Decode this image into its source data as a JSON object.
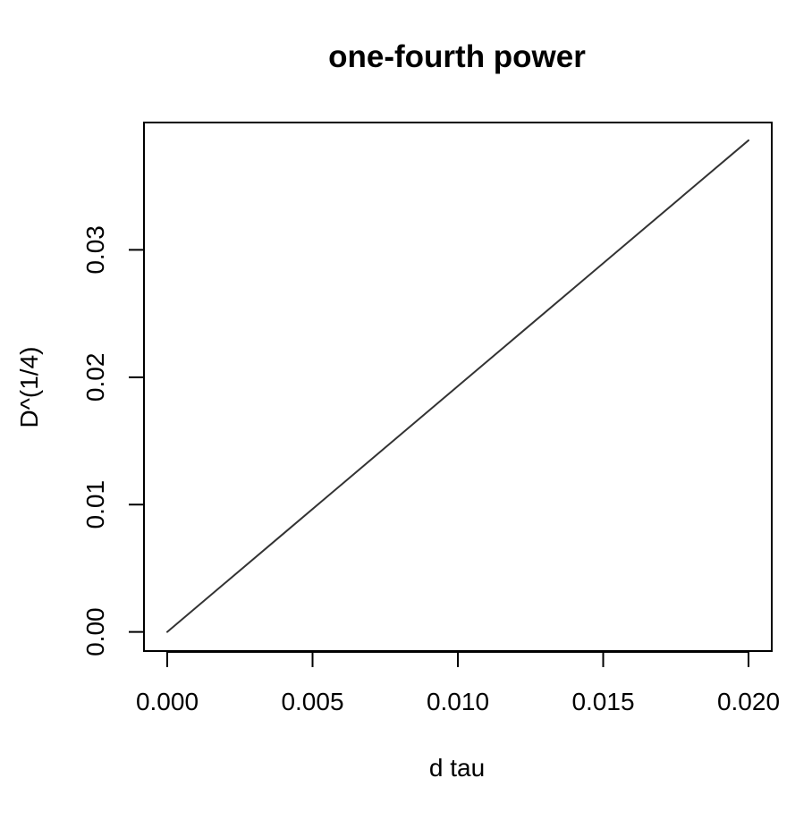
{
  "chart_data": {
    "type": "line",
    "title": "one-fourth power",
    "xlabel": "d tau",
    "ylabel": "D^(1/4)",
    "xlim": [
      -0.0008,
      0.0208
    ],
    "ylim": [
      -0.0015,
      0.04
    ],
    "x_ticks": [
      0.0,
      0.005,
      0.01,
      0.015,
      0.02
    ],
    "x_tick_labels": [
      "0.000",
      "0.005",
      "0.010",
      "0.015",
      "0.020"
    ],
    "y_ticks": [
      0.0,
      0.01,
      0.02,
      0.03
    ],
    "y_tick_labels": [
      "0.00",
      "0.01",
      "0.02",
      "0.03"
    ],
    "grid": false,
    "series": [
      {
        "x": [
          0.0,
          0.002,
          0.004,
          0.006,
          0.008,
          0.01,
          0.012,
          0.014,
          0.016,
          0.018,
          0.02
        ],
        "y": [
          0.0,
          0.00386,
          0.00772,
          0.01158,
          0.01544,
          0.0193,
          0.02316,
          0.02702,
          0.03088,
          0.03474,
          0.0386
        ]
      }
    ],
    "colors": {
      "line": "#333333",
      "axis": "#000000",
      "frame": "#000000"
    }
  }
}
